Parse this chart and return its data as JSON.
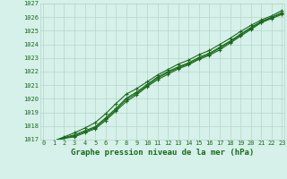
{
  "title": "Graphe pression niveau de la mer (hPa)",
  "x_values": [
    0,
    1,
    2,
    3,
    4,
    5,
    6,
    7,
    8,
    9,
    10,
    11,
    12,
    13,
    14,
    15,
    16,
    17,
    18,
    19,
    20,
    21,
    22,
    23
  ],
  "lines": [
    [
      1016.9,
      1016.9,
      1017.1,
      1017.2,
      1017.5,
      1017.8,
      1018.4,
      1019.1,
      1019.8,
      1020.3,
      1020.9,
      1021.4,
      1021.8,
      1022.2,
      1022.5,
      1022.9,
      1023.2,
      1023.6,
      1024.1,
      1024.6,
      1025.1,
      1025.6,
      1025.9,
      1026.2
    ],
    [
      1016.9,
      1016.9,
      1017.15,
      1017.35,
      1017.65,
      1017.95,
      1018.6,
      1019.3,
      1020.05,
      1020.5,
      1021.05,
      1021.6,
      1022.0,
      1022.35,
      1022.65,
      1023.05,
      1023.35,
      1023.8,
      1024.25,
      1024.75,
      1025.25,
      1025.7,
      1026.0,
      1026.35
    ],
    [
      1016.9,
      1016.9,
      1017.2,
      1017.5,
      1017.85,
      1018.25,
      1018.9,
      1019.65,
      1020.35,
      1020.75,
      1021.25,
      1021.75,
      1022.15,
      1022.55,
      1022.85,
      1023.25,
      1023.55,
      1024.0,
      1024.45,
      1024.95,
      1025.4,
      1025.8,
      1026.1,
      1026.5
    ],
    [
      1016.9,
      1016.9,
      1017.1,
      1017.28,
      1017.58,
      1017.88,
      1018.5,
      1019.2,
      1019.95,
      1020.4,
      1020.98,
      1021.52,
      1021.92,
      1022.28,
      1022.58,
      1022.98,
      1023.28,
      1023.72,
      1024.18,
      1024.7,
      1025.18,
      1025.65,
      1025.98,
      1026.28
    ]
  ],
  "line_color": "#1a6b1a",
  "marker": "+",
  "markersize": 3.5,
  "markeredgewidth": 0.8,
  "ylim": [
    1017,
    1027
  ],
  "xlim": [
    -0.3,
    23.2
  ],
  "yticks": [
    1017,
    1018,
    1019,
    1020,
    1021,
    1022,
    1023,
    1024,
    1025,
    1026,
    1027
  ],
  "xticks": [
    0,
    1,
    2,
    3,
    4,
    5,
    6,
    7,
    8,
    9,
    10,
    11,
    12,
    13,
    14,
    15,
    16,
    17,
    18,
    19,
    20,
    21,
    22,
    23
  ],
  "bg_color": "#d6f0ea",
  "grid_color": "#b8d4cc",
  "tick_label_color": "#1a6b1a",
  "title_color": "#1a6b1a",
  "title_fontsize": 6.5,
  "tick_fontsize": 5.0,
  "linewidth": 0.8
}
